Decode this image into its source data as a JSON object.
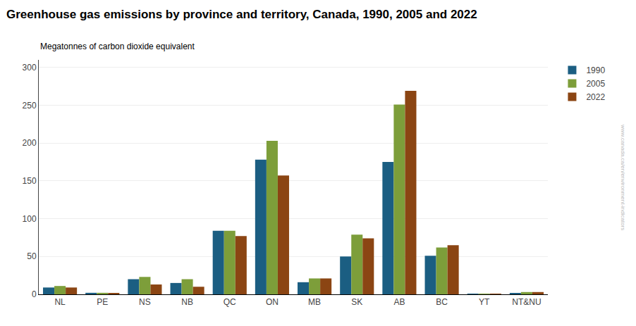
{
  "chart_data": {
    "type": "bar",
    "title": "Greenhouse gas emissions by province and territory, Canada, 1990, 2005 and 2022",
    "ylabel": "Megatonnes of carbon dioxide equivalent",
    "categories": [
      "NL",
      "PE",
      "NS",
      "NB",
      "QC",
      "ON",
      "MB",
      "SK",
      "AB",
      "BC",
      "YT",
      "NT&NU"
    ],
    "series": [
      {
        "name": "1990",
        "color": "#1b5e82",
        "values": [
          9,
          2,
          20,
          15,
          84,
          178,
          16,
          50,
          175,
          51,
          0.6,
          1.5
        ]
      },
      {
        "name": "2005",
        "color": "#7d9e3a",
        "values": [
          11,
          2,
          23,
          20,
          84,
          203,
          21,
          79,
          251,
          62,
          0.7,
          3
        ]
      },
      {
        "name": "2022",
        "color": "#8b4513",
        "values": [
          9,
          1.5,
          13,
          10,
          77,
          157,
          21,
          74,
          269,
          65,
          0.5,
          3
        ]
      }
    ],
    "ylim": [
      0,
      310
    ],
    "yticks": [
      0,
      50,
      100,
      150,
      200,
      250,
      300
    ],
    "grid": true,
    "legend": "right",
    "annotations": [
      "www.canada.ca/en/environment-indicators"
    ]
  }
}
